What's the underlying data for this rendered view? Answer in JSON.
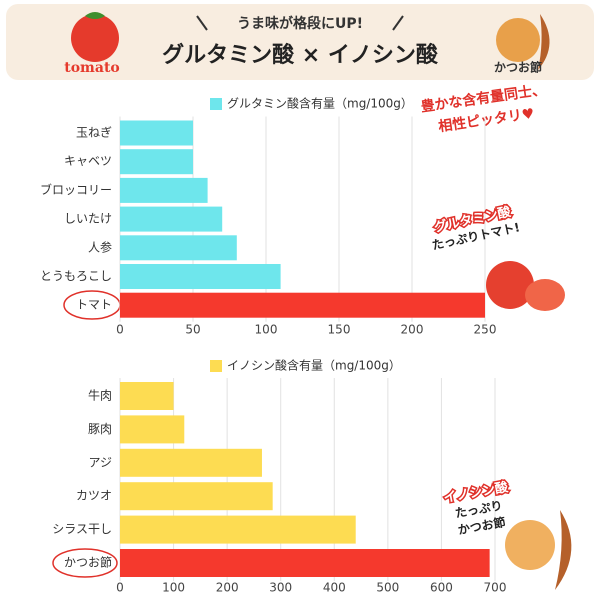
{
  "header": {
    "subtitle": "うま味が格段にUP!",
    "title": "グルタミン酸 × イノシン酸",
    "left_label": "tomato",
    "right_label": "かつお節",
    "note_lines": [
      "豊かな含有量同士、",
      "相性ピッタリ♥"
    ]
  },
  "chart_data": [
    {
      "type": "barh",
      "legend": "グルタミン酸含有量（mg/100g）",
      "color": "#6ee6ec",
      "categories": [
        "玉ねぎ",
        "キャベツ",
        "ブロッコリー",
        "しいたけ",
        "人参",
        "とうもろこし",
        "トマト"
      ],
      "values": [
        50,
        50,
        60,
        70,
        80,
        110,
        250
      ],
      "colors": [
        "#6ee6ec",
        "#6ee6ec",
        "#6ee6ec",
        "#6ee6ec",
        "#6ee6ec",
        "#6ee6ec",
        "#f5392d"
      ],
      "xlim": [
        0,
        250
      ],
      "xticks": [
        0,
        50,
        100,
        150,
        200,
        250
      ],
      "grid": true,
      "annotation": [
        "グルタミン酸",
        "たっぷりトマト!"
      ]
    },
    {
      "type": "barh",
      "legend": "イノシン酸含有量（mg/100g）",
      "color": "#fddc52",
      "categories": [
        "牛肉",
        "豚肉",
        "アジ",
        "カツオ",
        "シラス干し",
        "かつお節"
      ],
      "values": [
        100,
        120,
        265,
        285,
        440,
        690
      ],
      "colors": [
        "#fddc52",
        "#fddc52",
        "#fddc52",
        "#fddc52",
        "#fddc52",
        "#f5392d"
      ],
      "xlim": [
        0,
        700
      ],
      "xticks": [
        0,
        100,
        200,
        300,
        400,
        500,
        600,
        700
      ],
      "grid": true,
      "annotation": [
        "イノシン酸",
        "たっぷり",
        "かつお節"
      ]
    }
  ]
}
